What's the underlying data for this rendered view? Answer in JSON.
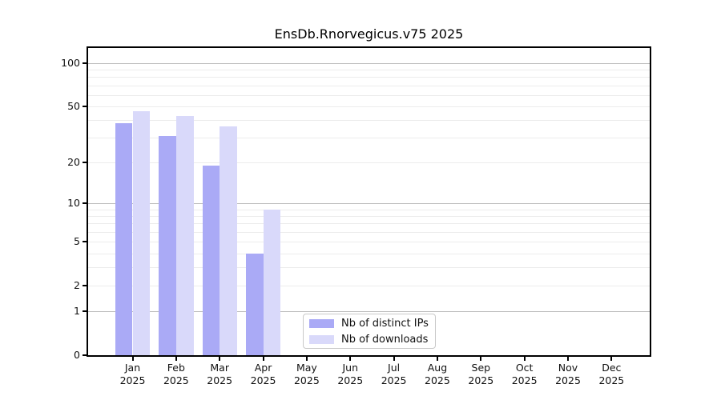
{
  "chart_data": {
    "type": "bar",
    "title": "EnsDb.Rnorvegicus.v75 2025",
    "categories": [
      "Jan 2025",
      "Feb 2025",
      "Mar 2025",
      "Apr 2025",
      "May 2025",
      "Jun 2025",
      "Jul 2025",
      "Aug 2025",
      "Sep 2025",
      "Oct 2025",
      "Nov 2025",
      "Dec 2025"
    ],
    "series": [
      {
        "name": "Nb of distinct IPs",
        "color": "#aaaaf6",
        "values": [
          38,
          31,
          19,
          4,
          0,
          0,
          0,
          0,
          0,
          0,
          0,
          0
        ]
      },
      {
        "name": "Nb of downloads",
        "color": "#d9d9fa",
        "values": [
          46,
          43,
          36,
          9,
          0,
          0,
          0,
          0,
          0,
          0,
          0,
          0
        ]
      }
    ],
    "yscale": "log1p",
    "yticks": [
      0,
      1,
      2,
      5,
      10,
      20,
      50,
      100
    ],
    "ylim": [
      0,
      127
    ],
    "grid": "horizontal",
    "legend_position": "bottom-center-inside",
    "colors": {
      "grid_minor": "#ebebeb",
      "grid_major": "#bdbdbd",
      "axis": "#000000",
      "legend_border": "#c9c9c9"
    }
  }
}
